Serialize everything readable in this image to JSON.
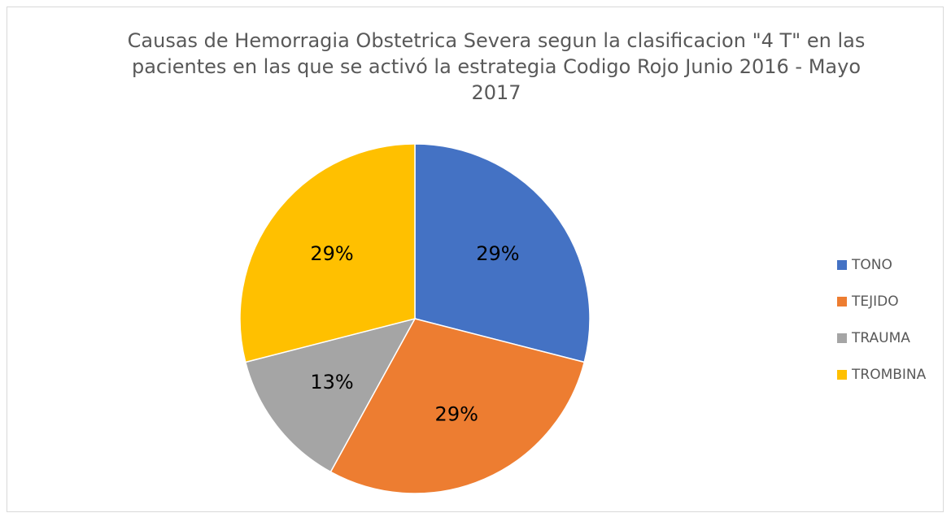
{
  "chart_data": {
    "type": "pie",
    "title": "Causas de Hemorragia Obstetrica Severa segun la clasificacion \"4 T\"  en las pacientes en las que se activó la estrategia Codigo Rojo Junio 2016 - Mayo 2017",
    "categories": [
      "TONO",
      "TEJIDO",
      "TRAUMA",
      "TROMBINA"
    ],
    "values": [
      29,
      29,
      13,
      29
    ],
    "value_labels": [
      "29%",
      "29%",
      "13%",
      "29%"
    ],
    "colors": [
      "#4472c4",
      "#ed7d31",
      "#a5a5a5",
      "#ffc000"
    ],
    "legend": "right"
  }
}
